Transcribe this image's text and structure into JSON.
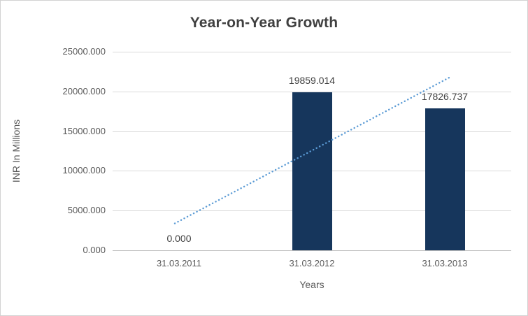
{
  "chart_data": {
    "type": "bar",
    "title": "Year-on-Year Growth",
    "categories": [
      "31.03.2011",
      "31.03.2012",
      "31.03.2013"
    ],
    "values": [
      0.0,
      19859.014,
      17826.737
    ],
    "value_labels": [
      "0.000",
      "19859.014",
      "17826.737"
    ],
    "xlabel": "Years",
    "ylabel": "INR In Millions",
    "ylim": [
      0,
      25000
    ],
    "ytick_step": 5000,
    "ytick_labels": [
      "0.000",
      "5000.000",
      "10000.000",
      "15000.000",
      "20000.000",
      "25000.000"
    ],
    "grid": true,
    "legend": "none",
    "bar_color": "#16365c",
    "trendline": {
      "type": "linear",
      "style": "dotted",
      "color": "#5b9bd5"
    }
  }
}
